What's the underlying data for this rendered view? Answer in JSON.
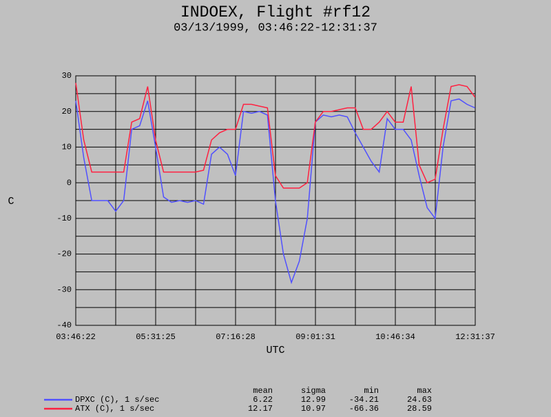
{
  "chart_data": {
    "type": "line",
    "title": "INDOEX, Flight #rf12",
    "subtitle": "03/13/1999, 03:46:22-12:31:37",
    "x_label": "UTC",
    "y_label": "C",
    "x": [
      13582,
      14212,
      14842,
      15472,
      16102,
      16732,
      17362,
      17992,
      18622,
      19252,
      19882,
      20512,
      21142,
      21772,
      22402,
      23032,
      23662,
      24292,
      24922,
      25552,
      26182,
      26812,
      27442,
      28072,
      28702,
      29332,
      29962,
      30592,
      31222,
      31852,
      32482,
      33112,
      33742,
      34372,
      35002,
      35632,
      36262,
      36892,
      37522,
      38152,
      38782,
      39412,
      40042,
      40672,
      41302,
      41932,
      42562,
      43192,
      43822,
      44452,
      45082
    ],
    "series": [
      {
        "name": "DPXC (C), 1 s/sec",
        "color": "#5050ff",
        "values": [
          23,
          7,
          -5,
          -5,
          -5,
          -8,
          -5,
          15,
          16,
          23,
          10,
          -4,
          -5.5,
          -5,
          -5.5,
          -5,
          -6,
          8,
          10,
          8,
          2,
          20,
          19.5,
          20,
          19,
          -5,
          -20,
          -28,
          -22,
          -10,
          17,
          19,
          18.5,
          19,
          18.5,
          14,
          10,
          6,
          3,
          18,
          15,
          15,
          12,
          2,
          -7,
          -10,
          10,
          23,
          23.5,
          22,
          21
        ]
      },
      {
        "name": "ATX (C), 1 s/sec",
        "color": "#ff2040",
        "values": [
          28,
          12,
          3,
          3,
          3,
          3,
          3,
          17,
          18,
          27,
          12,
          3,
          3,
          3,
          3,
          3,
          3.5,
          12,
          14,
          15,
          15,
          22,
          22,
          21.5,
          21,
          2,
          -1.5,
          -1.5,
          -1.5,
          0,
          17,
          20,
          20,
          20.5,
          21,
          21,
          15,
          15,
          17,
          20,
          17,
          17,
          27,
          5,
          0,
          1,
          15,
          27,
          27.5,
          27,
          24
        ]
      }
    ],
    "xlim": [
      13582,
      45097
    ],
    "xticks": [
      {
        "value": 13582,
        "label": "03:46:22"
      },
      {
        "value": 19885,
        "label": "05:31:25"
      },
      {
        "value": 26188,
        "label": "07:16:28"
      },
      {
        "value": 32491,
        "label": "09:01:31"
      },
      {
        "value": 38794,
        "label": "10:46:34"
      },
      {
        "value": 45097,
        "label": "12:31:37"
      }
    ],
    "ylim": [
      -40,
      30
    ],
    "yticks": [
      -40,
      -30,
      -20,
      -10,
      0,
      10,
      20,
      30
    ],
    "grid": true,
    "stats": {
      "headers": [
        "mean",
        "sigma",
        "min",
        "max"
      ],
      "rows": [
        [
          6.22,
          12.99,
          -34.21,
          24.63
        ],
        [
          12.17,
          10.97,
          -66.36,
          28.59
        ]
      ]
    }
  }
}
